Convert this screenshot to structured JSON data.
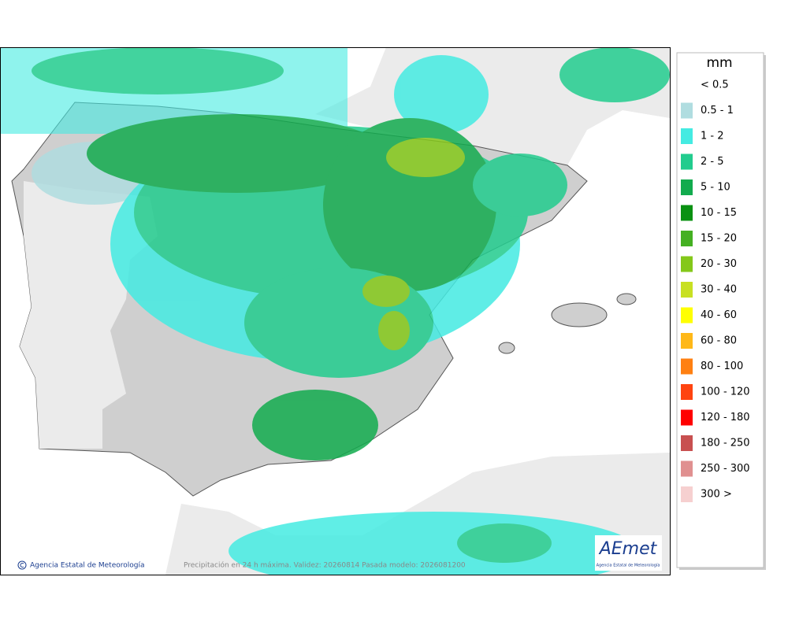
{
  "legend": {
    "title": "mm",
    "items": [
      {
        "label": "< 0.5",
        "color": "#ffffff"
      },
      {
        "label": "0.5 - 1",
        "color": "#b0dde0"
      },
      {
        "label": "1 - 2",
        "color": "#44ebe2"
      },
      {
        "label": "2 - 5",
        "color": "#22cc8e"
      },
      {
        "label": "5 - 10",
        "color": "#12ab4e"
      },
      {
        "label": "10 - 15",
        "color": "#0a9112"
      },
      {
        "label": "15 - 20",
        "color": "#44b022"
      },
      {
        "label": "20 - 30",
        "color": "#84c81a"
      },
      {
        "label": "30 - 40",
        "color": "#c8e022"
      },
      {
        "label": "40 - 60",
        "color": "#ffff00"
      },
      {
        "label": "60 - 80",
        "color": "#ffb818"
      },
      {
        "label": "80 - 100",
        "color": "#ff8012"
      },
      {
        "label": "100 - 120",
        "color": "#ff4410"
      },
      {
        "label": "120 - 180",
        "color": "#ff0000"
      },
      {
        "label": "180 - 250",
        "color": "#c85050"
      },
      {
        "label": "250 - 300",
        "color": "#e09090"
      },
      {
        "label": "300 >",
        "color": "#f6d0d0"
      }
    ]
  },
  "footer": {
    "credit": "Agencia Estatal de Meteorología",
    "caption": "Precipitación en 24 h máxima. Validez: 20260814 Pasada modelo: 2026081200"
  },
  "logo": {
    "name": "AEmet",
    "subtitle": "Agencia Estatal de Meteorología"
  }
}
